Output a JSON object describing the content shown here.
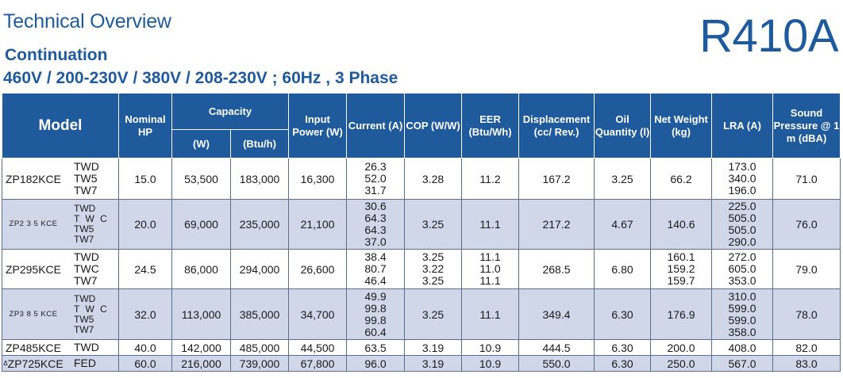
{
  "header": {
    "title": "Technical Overview",
    "subtitle": "Continuation",
    "spec_line": "460V / 200-230V / 380V / 208-230V ; 60Hz , 3 Phase",
    "refrigerant": "R410A"
  },
  "columns": {
    "model": "Model",
    "nominal_hp": "Nominal HP",
    "capacity": "Capacity",
    "capacity_w": "(W)",
    "capacity_btu": "(Btu/h)",
    "input_power": "Input Power (W)",
    "current": "Current (A)",
    "cop": "COP (W/W)",
    "eer": "EER (Btu/Wh)",
    "displacement": "Displacement (cc/ Rev.)",
    "oil_quantity": "Oil Quantity (l)",
    "net_weight": "Net Weight (kg)",
    "lra": "LRA (A)",
    "sound": "Sound Pressure @ 1 m (dBA)"
  },
  "rows": [
    {
      "model": "ZP182KCE",
      "variants": [
        "TWD",
        "TW5",
        "TW7"
      ],
      "hp": "15.0",
      "cap_w": "53,500",
      "cap_btu": "183,000",
      "power": "16,300",
      "current": [
        "26.3",
        "52.0",
        "31.7"
      ],
      "cop": [
        "3.28"
      ],
      "eer": [
        "11.2"
      ],
      "displacement": "167.2",
      "oil": "3.25",
      "weight": [
        "66.2"
      ],
      "lra": [
        "173.0",
        "340.0",
        "196.0"
      ],
      "sound": "71.0"
    },
    {
      "model": "ZP2 3 5 KCE",
      "variants": [
        "TWD",
        "T W C",
        "TW5",
        "TW7"
      ],
      "hp": "20.0",
      "cap_w": "69,000",
      "cap_btu": "235,000",
      "power": "21,100",
      "current": [
        "30.6",
        "64.3",
        "64.3",
        "37.0"
      ],
      "cop": [
        "3.25"
      ],
      "eer": [
        "11.1"
      ],
      "displacement": "217.2",
      "oil": "4.67",
      "weight": [
        "140.6"
      ],
      "lra": [
        "225.0",
        "505.0",
        "505.0",
        "290.0"
      ],
      "sound": "76.0"
    },
    {
      "model": "ZP295KCE",
      "variants": [
        "TWD",
        "TWC",
        "TW7"
      ],
      "hp": "24.5",
      "cap_w": "86,000",
      "cap_btu": "294,000",
      "power": "26,600",
      "current": [
        "38.4",
        "80.7",
        "46.4"
      ],
      "cop": [
        "3.25",
        "3.22",
        "3.25"
      ],
      "eer": [
        "11.1",
        "11.0",
        "11.1"
      ],
      "displacement": "268.5",
      "oil": "6.80",
      "weight": [
        "160.1",
        "159.2",
        "159.7"
      ],
      "lra": [
        "272.0",
        "605.0",
        "353.0"
      ],
      "sound": "79.0"
    },
    {
      "model": "ZP3 8 5 KCE",
      "variants": [
        "TWD",
        "T W C",
        "TW5",
        "TW7"
      ],
      "hp": "32.0",
      "cap_w": "113,000",
      "cap_btu": "385,000",
      "power": "34,700",
      "current": [
        "49.9",
        "99.8",
        "99.8",
        "60.4"
      ],
      "cop": [
        "3.25"
      ],
      "eer": [
        "11.1"
      ],
      "displacement": "349.4",
      "oil": "6.30",
      "weight": [
        "176.9"
      ],
      "lra": [
        "310.0",
        "599.0",
        "599.0",
        "358.0"
      ],
      "sound": "78.0"
    },
    {
      "model": "ZP485KCE",
      "variants": [
        "TWD"
      ],
      "hp": "40.0",
      "cap_w": "142,000",
      "cap_btu": "485,000",
      "power": "44,500",
      "current": [
        "63.5"
      ],
      "cop": [
        "3.19"
      ],
      "eer": [
        "10.9"
      ],
      "displacement": "444.5",
      "oil": "6.30",
      "weight": [
        "200.0"
      ],
      "lra": [
        "408.0"
      ],
      "sound": "82.0"
    },
    {
      "model": "ZP725KCE",
      "model_mark": "Δ",
      "variants": [
        "FED"
      ],
      "hp": "60.0",
      "cap_w": "216,000",
      "cap_btu": "739,000",
      "power": "67,800",
      "current": [
        "96.0"
      ],
      "cop": [
        "3.19"
      ],
      "eer": [
        "10.9"
      ],
      "displacement": "550.0",
      "oil": "6.30",
      "weight": [
        "250.0"
      ],
      "lra": [
        "567.0"
      ],
      "sound": "83.0"
    }
  ]
}
